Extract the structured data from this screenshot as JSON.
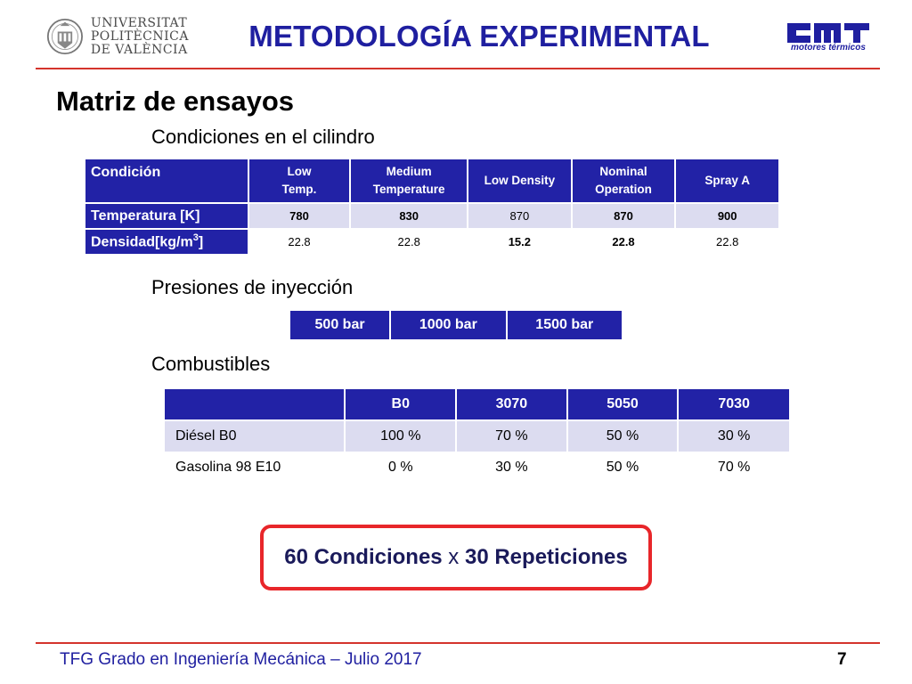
{
  "header": {
    "university_lines": [
      "UNIVERSITAT",
      "POLITÈCNICA",
      "DE VALÈNCIA"
    ],
    "title": "METODOLOGÍA EXPERIMENTAL",
    "lab_subtitle": "motores térmicos"
  },
  "section_title": "Matriz de ensayos",
  "conditions": {
    "heading": "Condiciones en el cilindro",
    "header_label": "Condición",
    "columns": [
      {
        "line1": "Low",
        "line2": "Temp."
      },
      {
        "line1": "Medium",
        "line2": "Temperature"
      },
      {
        "line1": "Low Density",
        "line2": ""
      },
      {
        "line1": "Nominal",
        "line2": "Operation"
      },
      {
        "line1": "Spray A",
        "line2": ""
      }
    ],
    "temperature_label": "Temperatura [K]",
    "temperature_values": [
      "780",
      "830",
      "870",
      "870",
      "900"
    ],
    "density_label_main": "Densidad[kg/m",
    "density_label_sup": "3",
    "density_label_end": "]",
    "density_values": [
      "22.8",
      "22.8",
      "15.2",
      "22.8",
      "22.8"
    ]
  },
  "pressures": {
    "heading": "Presiones de inyección",
    "values": [
      "500 bar",
      "1000 bar",
      "1500 bar"
    ]
  },
  "fuels": {
    "heading": "Combustibles",
    "columns": [
      "B0",
      "3070",
      "5050",
      "7030"
    ],
    "rows": [
      {
        "label": "Diésel B0",
        "values": [
          "100 %",
          "70 %",
          "50 %",
          "30 %"
        ]
      },
      {
        "label": "Gasolina 98 E10",
        "values": [
          "0 %",
          "30 %",
          "50 %",
          "70 %"
        ]
      }
    ]
  },
  "summary": {
    "part1": "60 Condiciones",
    "connector": " x ",
    "part2": "30 Repeticiones"
  },
  "footer": {
    "text": "TFG Grado en Ingeniería Mecánica – Julio 2017",
    "page_number": "7"
  }
}
